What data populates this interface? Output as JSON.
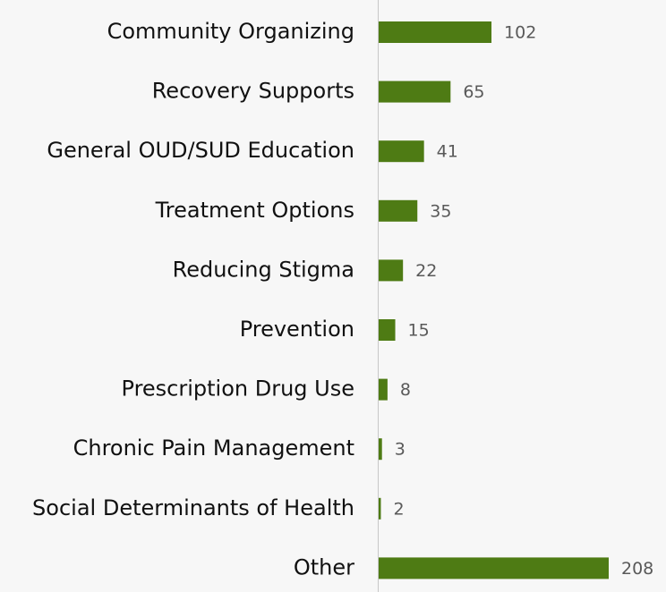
{
  "chart_data": {
    "type": "hbar",
    "categories": [
      "Community Organizing",
      "Recovery Supports",
      "General OUD/SUD Education",
      "Treatment Options",
      "Reducing Stigma",
      "Prevention",
      "Prescription Drug Use",
      "Chronic Pain Management",
      "Social Determinants of Health",
      "Other"
    ],
    "values": [
      102,
      65,
      41,
      35,
      22,
      15,
      8,
      3,
      2,
      208
    ],
    "color": "#4e7b14"
  }
}
